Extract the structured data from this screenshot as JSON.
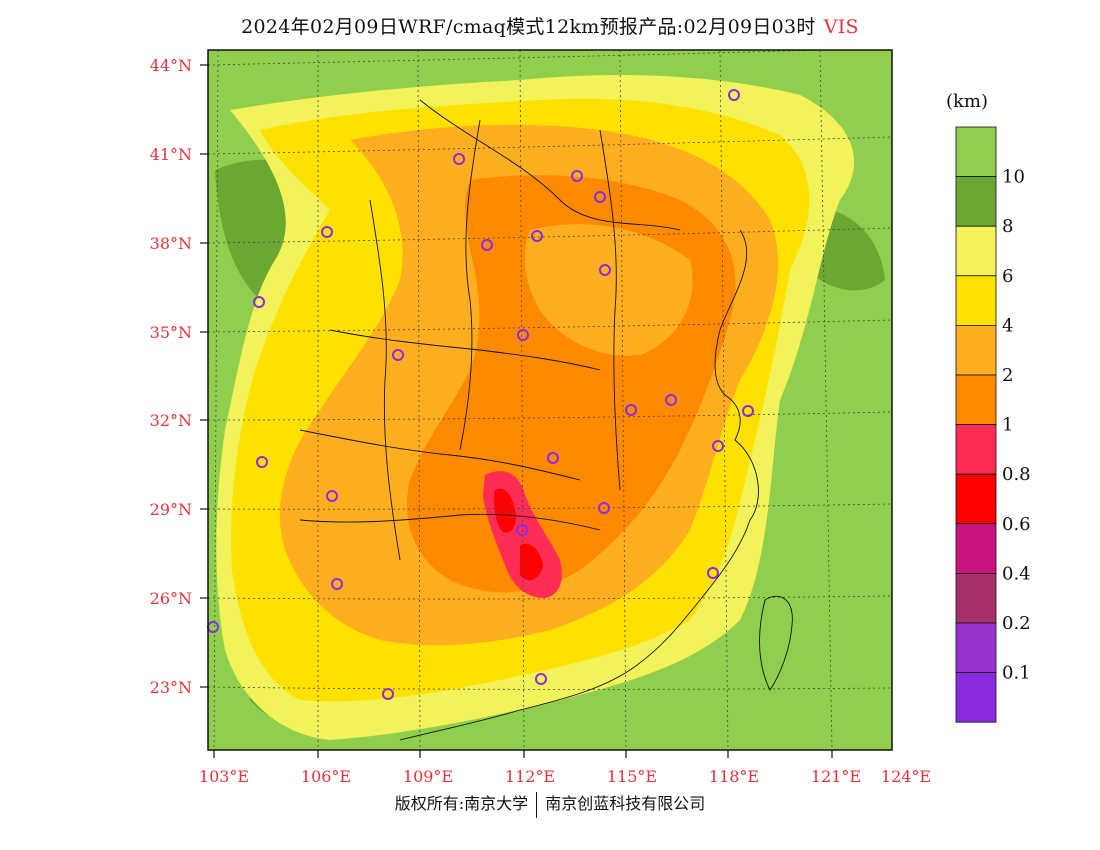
{
  "title": {
    "main": "2024年02月09日WRF/cmaq模式12km预报产品:02月09日03时",
    "variable": "VIS"
  },
  "axes": {
    "lat_labels": [
      "44°N",
      "41°N",
      "38°N",
      "35°N",
      "32°N",
      "29°N",
      "26°N",
      "23°N"
    ],
    "lon_labels": [
      "103°E",
      "106°E",
      "109°E",
      "112°E",
      "115°E",
      "118°E",
      "121°E",
      "124°E"
    ]
  },
  "legend": {
    "unit": "(km)",
    "entries": [
      {
        "label": "10",
        "color": "#8fcf4d"
      },
      {
        "label": "8",
        "color": "#6aa832"
      },
      {
        "label": "6",
        "color": "#f2f25a"
      },
      {
        "label": "4",
        "color": "#ffe100"
      },
      {
        "label": "2",
        "color": "#ffae1f"
      },
      {
        "label": "1",
        "color": "#ff8a00"
      },
      {
        "label": "0.8",
        "color": "#ff2d55"
      },
      {
        "label": "0.6",
        "color": "#ff0000"
      },
      {
        "label": "0.4",
        "color": "#cc1480"
      },
      {
        "label": "0.2",
        "color": "#a8306a"
      },
      {
        "label": "0.1",
        "color": "#9933cc"
      },
      {
        "label": "",
        "color": "#8a2be2"
      }
    ]
  },
  "footer": {
    "left": "版权所有:南京大学",
    "right": "南京创蓝科技有限公司"
  }
}
